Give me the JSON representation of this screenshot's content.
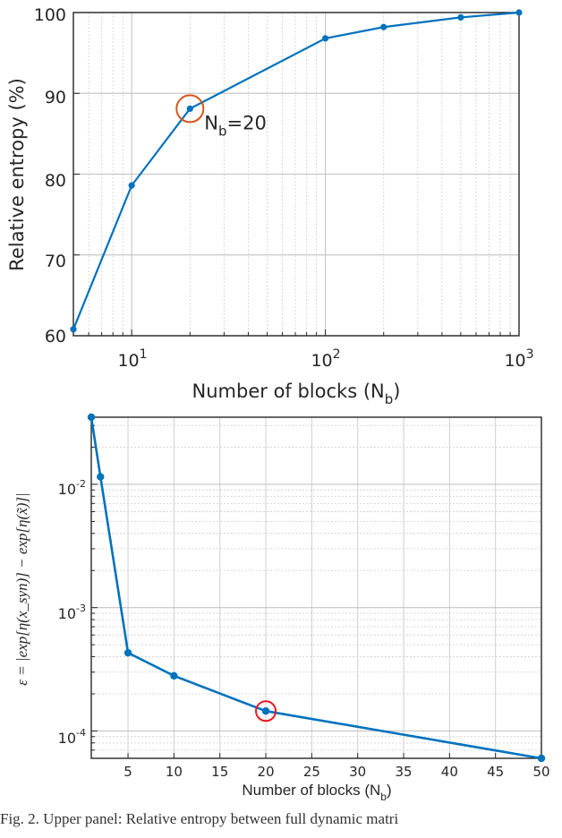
{
  "chart_data": [
    {
      "type": "line",
      "x_scale": "log",
      "xlim": [
        5,
        1000
      ],
      "ylim": [
        60,
        100
      ],
      "series": [
        {
          "x": [
            5,
            10,
            20,
            100,
            200,
            500,
            1000
          ],
          "y": [
            60.8,
            78.6,
            88.1,
            96.8,
            98.2,
            99.4,
            100
          ]
        }
      ],
      "x_tick_labels": [
        {
          "base": "10",
          "exp": "1"
        },
        {
          "base": "10",
          "exp": "2"
        },
        {
          "base": "10",
          "exp": "3"
        }
      ],
      "y_tick_labels": [
        "60",
        "70",
        "80",
        "90",
        "100"
      ],
      "xlabel": {
        "main": "Number of blocks (N",
        "sub": "b",
        "tail": ")"
      },
      "ylabel": "Relative entropy (%)",
      "annotation": {
        "x": 20,
        "y": 88.1,
        "text_main": "N",
        "text_sub": "b",
        "text_tail": "=20"
      },
      "grid": true,
      "line_color": "#0072BD",
      "highlight_color": "#D95319"
    },
    {
      "type": "line",
      "y_scale": "log",
      "xlim": [
        1,
        50
      ],
      "ylim": [
        6e-05,
        0.035
      ],
      "series": [
        {
          "x": [
            1,
            2,
            5,
            10,
            20,
            50
          ],
          "y": [
            0.035,
            0.0115,
            0.00043,
            0.00028,
            0.000145,
            6e-05
          ]
        }
      ],
      "x_tick_labels": [
        "5",
        "10",
        "15",
        "20",
        "25",
        "30",
        "35",
        "40",
        "45",
        "50"
      ],
      "y_tick_labels": [
        {
          "base": "10",
          "exp": "-2"
        },
        {
          "base": "10",
          "exp": "-3"
        },
        {
          "base": "10",
          "exp": "-4"
        }
      ],
      "xlabel": {
        "main": "Number of blocks (N",
        "sub": "b",
        "tail": ")"
      },
      "ylabel": "ε = |exp[η(x_syn)] − exp[η(x̃)]|",
      "annotation": {
        "x": 20,
        "y": 0.000145
      },
      "grid": true,
      "line_color": "#0072BD",
      "highlight_color": "#E8171F"
    }
  ],
  "caption": "Fig. 2.  Upper panel: Relative entropy between full dynamic matri"
}
